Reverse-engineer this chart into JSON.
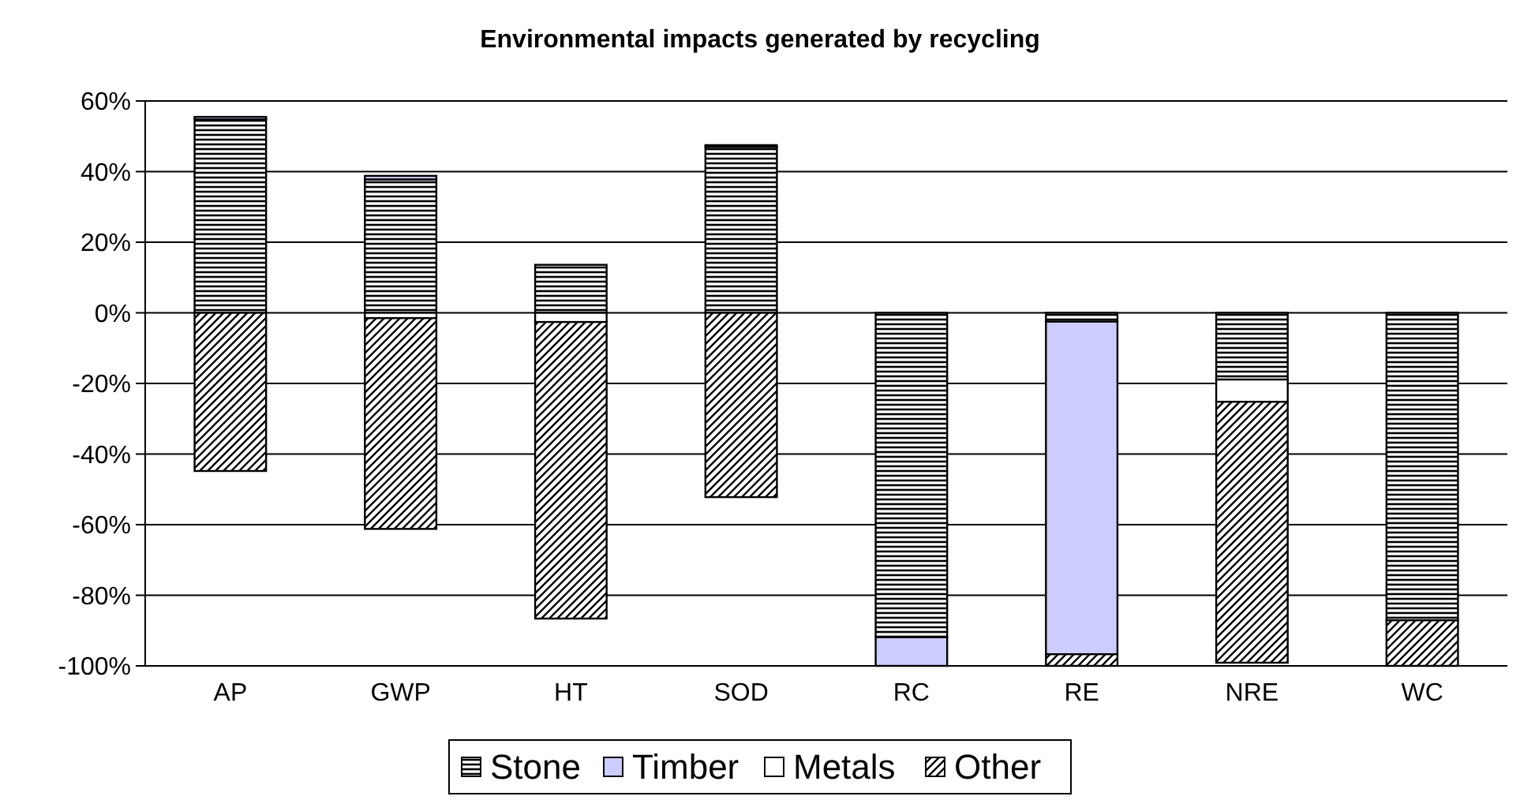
{
  "chart_data": {
    "type": "bar",
    "title": "Environmental impacts generated by recycling",
    "stacked": true,
    "categories": [
      "AP",
      "GWP",
      "HT",
      "SOD",
      "RC",
      "RE",
      "NRE",
      "WC"
    ],
    "series": [
      {
        "name": "Stone",
        "color": "#000000",
        "values": [
          54.8,
          37.8,
          13.6,
          47.0,
          -91.9,
          -2.5,
          -18.9,
          -87.1
        ]
      },
      {
        "name": "Timber",
        "color": "#ccccff",
        "values": [
          0.7,
          1.0,
          null,
          0.5,
          -8.1,
          -94.2,
          null,
          null
        ]
      },
      {
        "name": "Metals",
        "color": "#ffffff",
        "values": [
          null,
          -1.5,
          -2.6,
          null,
          null,
          null,
          -6.3,
          null
        ]
      },
      {
        "name": "Other",
        "color": "#000000",
        "values": [
          -44.8,
          -59.7,
          -84.0,
          -52.2,
          null,
          -3.3,
          -73.9,
          -12.9
        ]
      }
    ],
    "ylim": [
      -100,
      60
    ],
    "yticks": [
      {
        "value": -100,
        "label": "-100%"
      },
      {
        "value": -80,
        "label": "-80%"
      },
      {
        "value": -60,
        "label": "-60%"
      },
      {
        "value": -40,
        "label": "-40%"
      },
      {
        "value": -20,
        "label": "-20%"
      },
      {
        "value": 0,
        "label": "0%"
      },
      {
        "value": 20,
        "label": "20%"
      },
      {
        "value": 40,
        "label": "40%"
      },
      {
        "value": 60,
        "label": "60%"
      }
    ],
    "grid": "y",
    "legend": "bottom"
  }
}
